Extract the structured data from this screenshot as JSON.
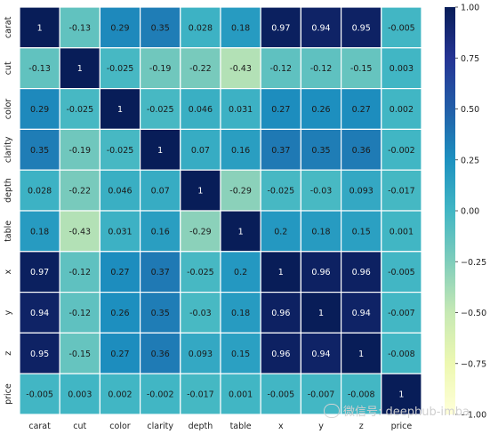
{
  "chart_data": {
    "type": "heatmap",
    "title": "",
    "xlabel": "",
    "ylabel": "",
    "labels": [
      "carat",
      "cut",
      "color",
      "clarity",
      "depth",
      "table",
      "x",
      "y",
      "z",
      "price"
    ],
    "values": [
      [
        1,
        -0.13,
        0.29,
        0.35,
        0.028,
        0.18,
        0.97,
        0.94,
        0.95,
        -0.005
      ],
      [
        -0.13,
        1,
        -0.025,
        -0.19,
        -0.22,
        -0.43,
        -0.12,
        -0.12,
        -0.15,
        0.003
      ],
      [
        0.29,
        -0.025,
        1,
        -0.025,
        0.046,
        0.031,
        0.27,
        0.26,
        0.27,
        0.002
      ],
      [
        0.35,
        -0.19,
        -0.025,
        1,
        0.07,
        0.16,
        0.37,
        0.35,
        0.36,
        -0.002
      ],
      [
        0.028,
        -0.22,
        0.046,
        0.07,
        1,
        -0.29,
        -0.025,
        -0.03,
        0.093,
        -0.017
      ],
      [
        0.18,
        -0.43,
        0.031,
        0.16,
        -0.29,
        1,
        0.2,
        0.18,
        0.15,
        0.001
      ],
      [
        0.97,
        -0.12,
        0.27,
        0.37,
        -0.025,
        0.2,
        1,
        0.96,
        0.96,
        -0.005
      ],
      [
        0.94,
        -0.12,
        0.26,
        0.35,
        -0.03,
        0.18,
        0.96,
        1,
        0.94,
        -0.007
      ],
      [
        0.95,
        -0.15,
        0.27,
        0.36,
        0.093,
        0.15,
        0.96,
        0.94,
        1,
        -0.008
      ],
      [
        -0.005,
        0.003,
        0.002,
        -0.002,
        -0.017,
        0.001,
        -0.005,
        -0.007,
        -0.008,
        1
      ]
    ],
    "cell_text": [
      [
        "1",
        "-0.13",
        "0.29",
        "0.35",
        "0.028",
        "0.18",
        "0.97",
        "0.94",
        "0.95",
        "-0.005"
      ],
      [
        "-0.13",
        "1",
        "-0.025",
        "-0.19",
        "-0.22",
        "-0.43",
        "-0.12",
        "-0.12",
        "-0.15",
        "0.003"
      ],
      [
        "0.29",
        "-0.025",
        "1",
        "-0.025",
        "0.046",
        "0.031",
        "0.27",
        "0.26",
        "0.27",
        "0.002"
      ],
      [
        "0.35",
        "-0.19",
        "-0.025",
        "1",
        "0.07",
        "0.16",
        "0.37",
        "0.35",
        "0.36",
        "-0.002"
      ],
      [
        "0.028",
        "-0.22",
        "0.046",
        "0.07",
        "1",
        "-0.29",
        "-0.025",
        "-0.03",
        "0.093",
        "-0.017"
      ],
      [
        "0.18",
        "-0.43",
        "0.031",
        "0.16",
        "-0.29",
        "1",
        "0.2",
        "0.18",
        "0.15",
        "0.001"
      ],
      [
        "0.97",
        "-0.12",
        "0.27",
        "0.37",
        "-0.025",
        "0.2",
        "1",
        "0.96",
        "0.96",
        "-0.005"
      ],
      [
        "0.94",
        "-0.12",
        "0.26",
        "0.35",
        "-0.03",
        "0.18",
        "0.96",
        "1",
        "0.94",
        "-0.007"
      ],
      [
        "0.95",
        "-0.15",
        "0.27",
        "0.36",
        "0.093",
        "0.15",
        "0.96",
        "0.94",
        "1",
        "-0.008"
      ],
      [
        "-0.005",
        "0.003",
        "0.002",
        "-0.002",
        "-0.017",
        "0.001",
        "-0.005",
        "-0.007",
        "-0.008",
        "1"
      ]
    ],
    "colormap": "YlGnBu",
    "vmin": -1.0,
    "vmax": 1.0,
    "colorbar_ticks": [
      "1.00",
      "0.75",
      "0.50",
      "0.25",
      "0.00",
      "−0.25",
      "−0.50",
      "−0.75",
      "−1.00"
    ],
    "colorbar_tick_values": [
      1.0,
      0.75,
      0.5,
      0.25,
      0.0,
      -0.25,
      -0.5,
      -0.75,
      -1.0
    ],
    "grid": false
  },
  "watermark": {
    "text": "微信号: deephub-imba",
    "icon": "wechat-icon"
  }
}
